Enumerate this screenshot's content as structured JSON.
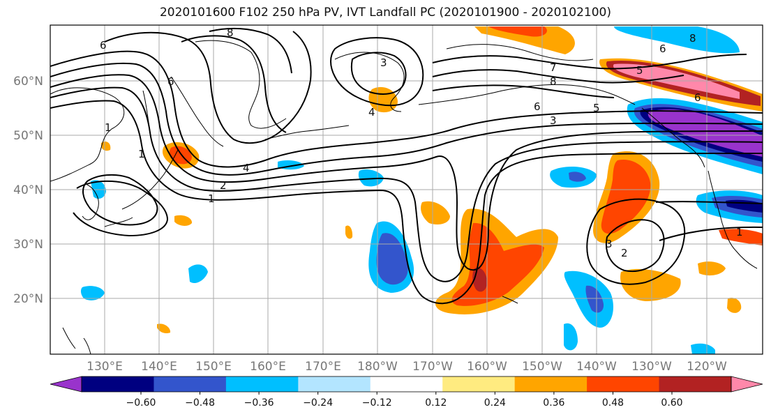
{
  "title": "2020101600 F102 250 hPa PV, IVT Landfall PC (2020101900 - 2020102100)",
  "map": {
    "lat_labels": [
      "60°N",
      "50°N",
      "40°N",
      "30°N",
      "20°N"
    ],
    "lon_labels": [
      "130°E",
      "140°E",
      "150°E",
      "160°E",
      "170°E",
      "180°W",
      "170°W",
      "160°W",
      "150°W",
      "140°W",
      "130°W",
      "120°W"
    ],
    "pv_contour_labels": [
      "6",
      "8",
      "3",
      "4",
      "1",
      "6",
      "1",
      "4",
      "2",
      "1",
      "7",
      "8",
      "6",
      "5",
      "3",
      "5",
      "6",
      "6",
      "8",
      "3",
      "2",
      "1"
    ]
  },
  "colorbar": {
    "tick_labels": [
      "−0.60",
      "−0.48",
      "−0.36",
      "−0.24",
      "−0.12",
      "0.12",
      "0.24",
      "0.36",
      "0.48",
      "0.60"
    ],
    "colors": [
      "#9933cc",
      "#000080",
      "#3355cc",
      "#00bfff",
      "#b3e5ff",
      "#ffffff",
      "#ffeb80",
      "#ffa500",
      "#ff4500",
      "#b22222",
      "#ff88aa"
    ]
  },
  "colors": {
    "neg_strong": "#9933cc",
    "neg_navy": "#000080",
    "neg_blue": "#3355cc",
    "neg_cyan": "#00bfff",
    "neg_light": "#b3e5ff",
    "pos_yellow": "#ffeb80",
    "pos_orange": "#ffa500",
    "pos_red": "#ff4500",
    "pos_dark": "#b22222",
    "pos_pink": "#ff88aa"
  }
}
